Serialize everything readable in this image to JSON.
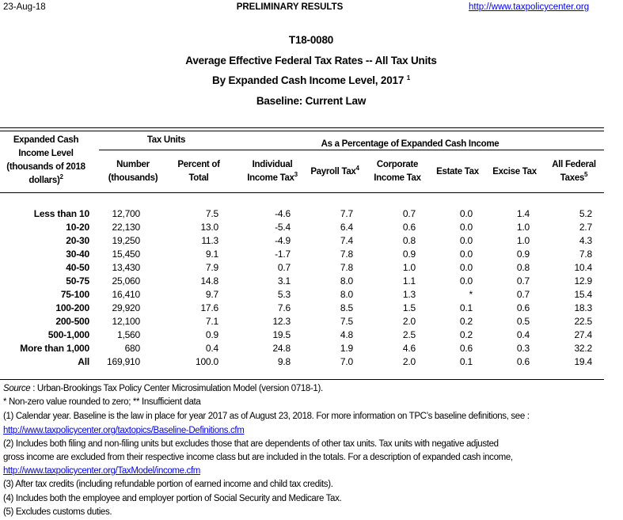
{
  "top": {
    "date": "23-Aug-18",
    "status": "PRELIMINARY RESULTS",
    "url": "http://www.taxpolicycenter.org"
  },
  "titles": {
    "table_id": "T18-0080",
    "line1": "Average Effective Federal Tax Rates -- All Tax Units",
    "line2": "By Expanded Cash Income Level, 2017",
    "line2_note": "1",
    "line3": "Baseline: Current Law"
  },
  "headers": {
    "income_level": [
      "Expanded Cash",
      "Income Level",
      "(thousands of 2018",
      "dollars)"
    ],
    "income_level_note": "2",
    "tax_units": "Tax Units",
    "pct_group": "As a Percentage of Expanded Cash Income",
    "number": [
      "Number",
      "(thousands)"
    ],
    "percent": [
      "Percent of",
      "Total"
    ],
    "individual": [
      "Individual",
      "Income Tax"
    ],
    "individual_note": "3",
    "payroll": "Payroll Tax",
    "payroll_note": "4",
    "corporate": [
      "Corporate",
      "Income Tax"
    ],
    "estate": "Estate Tax",
    "excise": "Excise Tax",
    "all_federal": [
      "All Federal",
      "Taxes"
    ],
    "all_federal_note": "5"
  },
  "rows": [
    [
      "Less than 10",
      "12,700",
      "7.5",
      "-4.6",
      "7.7",
      "0.7",
      "0.0",
      "1.4",
      "5.2"
    ],
    [
      "10-20",
      "22,130",
      "13.0",
      "-5.4",
      "6.4",
      "0.6",
      "0.0",
      "1.0",
      "2.7"
    ],
    [
      "20-30",
      "19,250",
      "11.3",
      "-4.9",
      "7.4",
      "0.8",
      "0.0",
      "1.0",
      "4.3"
    ],
    [
      "30-40",
      "15,450",
      "9.1",
      "-1.7",
      "7.8",
      "0.9",
      "0.0",
      "0.9",
      "7.8"
    ],
    [
      "40-50",
      "13,430",
      "7.9",
      "0.7",
      "7.8",
      "1.0",
      "0.0",
      "0.8",
      "10.4"
    ],
    [
      "50-75",
      "25,060",
      "14.8",
      "3.1",
      "8.0",
      "1.1",
      "0.0",
      "0.7",
      "12.9"
    ],
    [
      "75-100",
      "16,410",
      "9.7",
      "5.3",
      "8.0",
      "1.3",
      "*",
      "0.7",
      "15.4"
    ],
    [
      "100-200",
      "29,920",
      "17.6",
      "7.6",
      "8.5",
      "1.5",
      "0.1",
      "0.6",
      "18.3"
    ],
    [
      "200-500",
      "12,100",
      "7.1",
      "12.3",
      "7.5",
      "2.0",
      "0.2",
      "0.5",
      "22.5"
    ],
    [
      "500-1,000",
      "1,560",
      "0.9",
      "19.5",
      "4.8",
      "2.5",
      "0.2",
      "0.4",
      "27.4"
    ],
    [
      "More than 1,000",
      "680",
      "0.4",
      "24.8",
      "1.9",
      "4.6",
      "0.6",
      "0.3",
      "32.2"
    ],
    [
      "All",
      "169,910",
      "100.0",
      "9.8",
      "7.0",
      "2.0",
      "0.1",
      "0.6",
      "19.4"
    ]
  ],
  "footnotes": {
    "source_label": "Source",
    "source_text": " : Urban-Brookings Tax Policy Center Microsimulation Model (version 0718-1).",
    "star": "* Non-zero value rounded to zero; ** Insufficient data",
    "n1": "(1) Calendar year. Baseline is the law in place for year 2017 as of August 23, 2018. For more information on TPC’s baseline definitions, see :",
    "n1_link": "http://www.taxpolicycenter.org/taxtopics/Baseline-Definitions.cfm",
    "n2a": "(2) Includes both filing and non-filing units but excludes those that are dependents of other tax units. Tax units with negative adjusted",
    "n2b": "gross income are excluded from their respective income class but are included in the totals. For a description of expanded cash income,",
    "n2_link": "http://www.taxpolicycenter.org/TaxModel/income.cfm",
    "n3": "(3) After tax credits (including refundable portion of earned income and child tax credits).",
    "n4": "(4) Includes both the employee and employer portion of Social Security and Medicare Tax.",
    "n5": "(5) Excludes customs duties."
  }
}
